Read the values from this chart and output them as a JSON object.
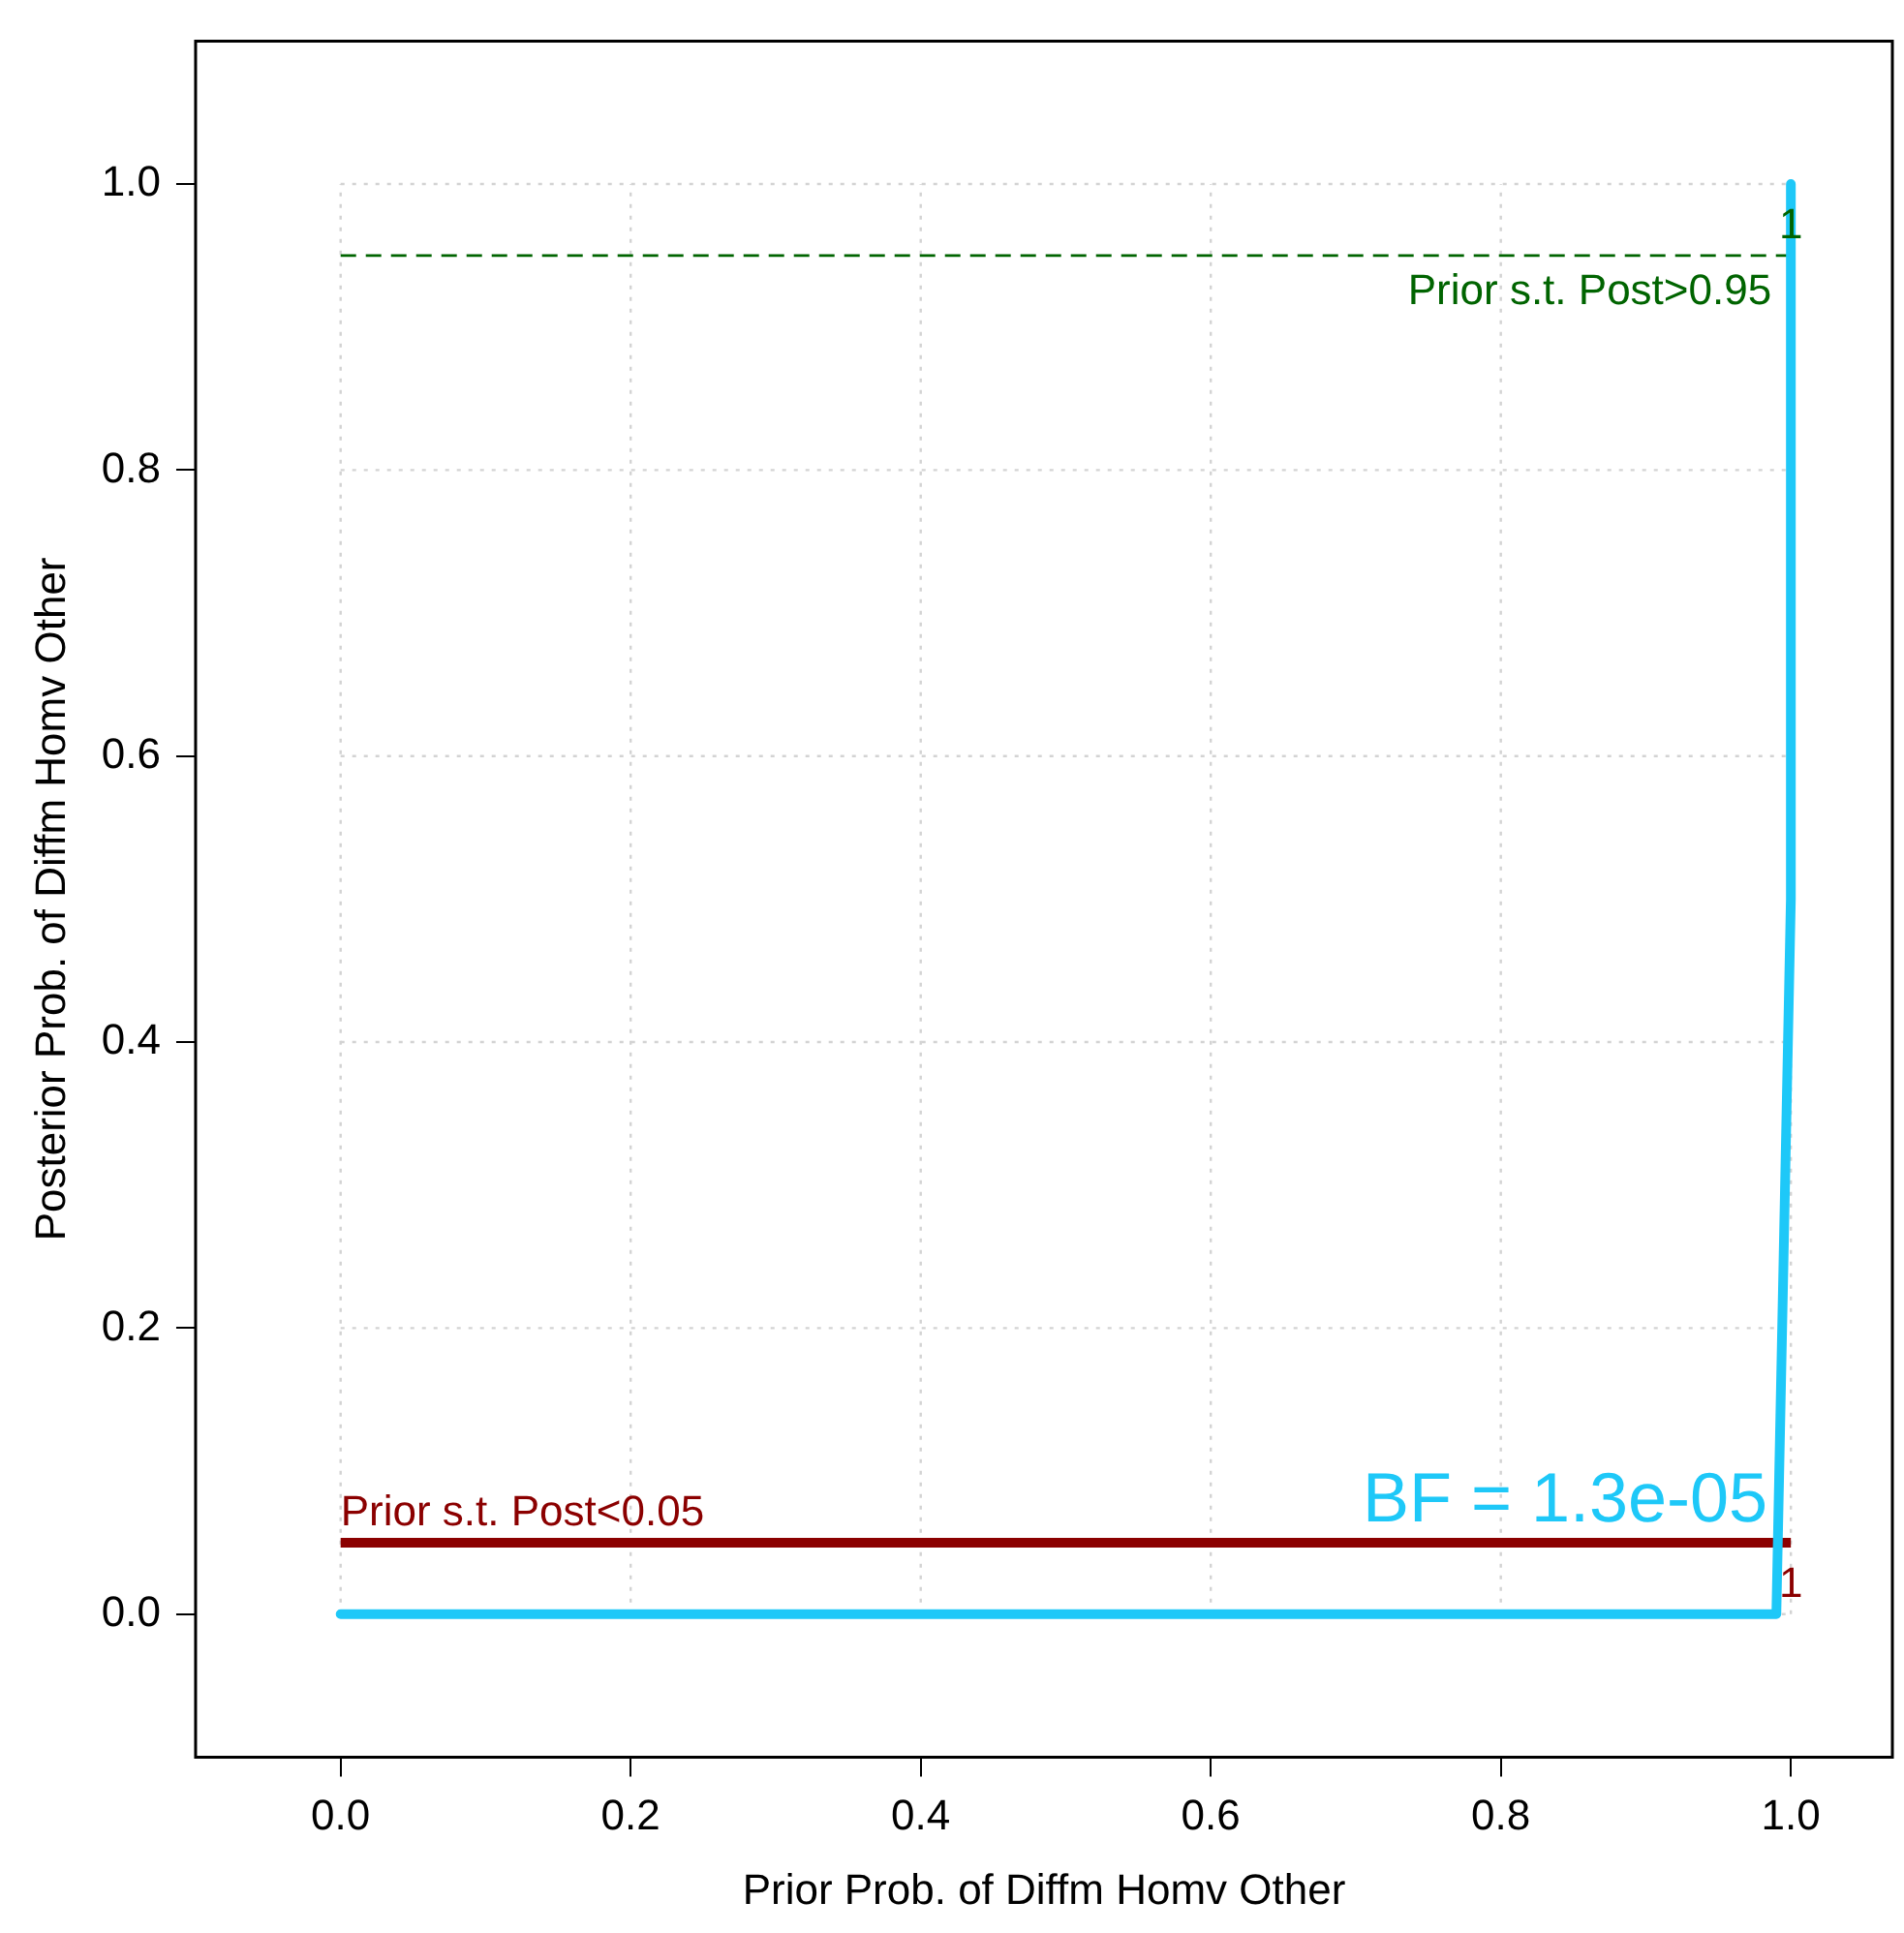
{
  "chart_data": {
    "type": "line",
    "xlabel": "Prior Prob. of Diffm Homv Other",
    "ylabel": "Posterior Prob. of Diffm Homv Other",
    "xlim": [
      -0.1,
      1.07
    ],
    "ylim": [
      -0.1,
      1.1
    ],
    "xticks": [
      {
        "value": 0,
        "label": "0.0"
      },
      {
        "value": 0.2,
        "label": "0.2"
      },
      {
        "value": 0.4,
        "label": "0.4"
      },
      {
        "value": 0.6,
        "label": "0.6"
      },
      {
        "value": 0.8,
        "label": "0.8"
      },
      {
        "value": 1,
        "label": "1.0"
      }
    ],
    "yticks": [
      {
        "value": 0,
        "label": "0.0"
      },
      {
        "value": 0.2,
        "label": "0.2"
      },
      {
        "value": 0.4,
        "label": "0.4"
      },
      {
        "value": 0.6,
        "label": "0.6"
      },
      {
        "value": 0.8,
        "label": "0.8"
      },
      {
        "value": 1,
        "label": "1.0"
      }
    ],
    "grid": true,
    "legend": false,
    "marker": "none",
    "series": [
      {
        "name": "BF = 1.3e-05",
        "color": "#1ec8f8",
        "x": [
          0,
          0.99,
          1,
          1
        ],
        "values": [
          0,
          0,
          0.5,
          1
        ]
      }
    ],
    "ref_lines": [
      {
        "axis": "y",
        "value": 0.05,
        "label": "Prior s.t. Post<0.05",
        "color": "#8b0000",
        "line_style": "solid"
      },
      {
        "axis": "y",
        "value": 0.95,
        "label": "Prior s.t. Post>0.95",
        "color": "#006400",
        "line_style": "dashed"
      }
    ],
    "annotations": [
      {
        "text": "1",
        "x": 1,
        "y": 0.97
      },
      {
        "text": "1",
        "x": 1,
        "y": 0.02
      }
    ]
  }
}
